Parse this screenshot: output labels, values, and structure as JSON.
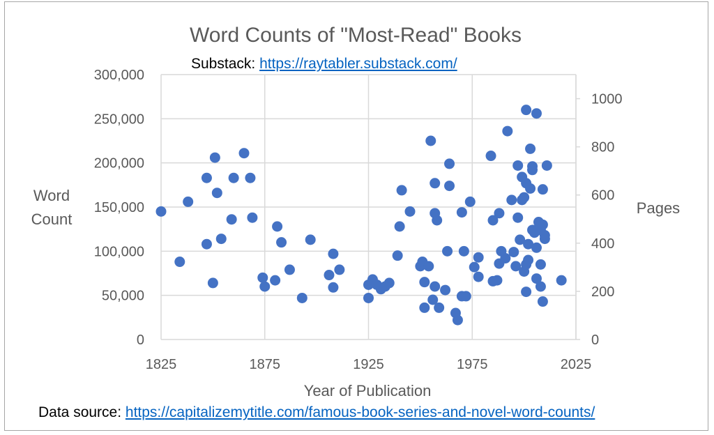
{
  "header": {
    "substack_prefix": "Substack: ",
    "substack_link": "https://raytabler.substack.com/"
  },
  "footer": {
    "source_prefix": "Data source: ",
    "source_link": "https://capitalizemytitle.com/famous-book-series-and-novel-word-counts/"
  },
  "chart_data": {
    "type": "scatter",
    "title": "Word Counts of \"Most-Read\" Books",
    "xlabel": "Year of Publication",
    "ylabel": [
      "Word",
      "Count"
    ],
    "y2label": "Pages",
    "xlim": [
      1825,
      2025
    ],
    "ylim": [
      0,
      300000
    ],
    "y2lim": [
      0,
      1100
    ],
    "x_ticks": [
      1825,
      1875,
      1925,
      1975,
      2025
    ],
    "x_tick_labels": [
      "1825",
      "1875",
      "1925",
      "1975",
      "2025"
    ],
    "y_ticks": [
      0,
      50000,
      100000,
      150000,
      200000,
      250000,
      300000
    ],
    "y_tick_labels": [
      "0",
      "50,000",
      "100,000",
      "150,000",
      "200,000",
      "250,000",
      "300,000"
    ],
    "y2_ticks": [
      0,
      200,
      400,
      600,
      800,
      1000
    ],
    "y2_tick_labels": [
      "0",
      "200",
      "400",
      "600",
      "800",
      "1000"
    ],
    "grid": true,
    "marker_color": "#4472c4",
    "series": [
      {
        "values": [
          [
            1825,
            145000
          ],
          [
            1834,
            88000
          ],
          [
            1838,
            156000
          ],
          [
            1847,
            108000
          ],
          [
            1847,
            183000
          ],
          [
            1850,
            64000
          ],
          [
            1851,
            206000
          ],
          [
            1852,
            166000
          ],
          [
            1854,
            114000
          ],
          [
            1859,
            136000
          ],
          [
            1860,
            183000
          ],
          [
            1865,
            211000
          ],
          [
            1868,
            183000
          ],
          [
            1869,
            138000
          ],
          [
            1874,
            70000
          ],
          [
            1875,
            60000
          ],
          [
            1880,
            67000
          ],
          [
            1881,
            128000
          ],
          [
            1883,
            110000
          ],
          [
            1887,
            79000
          ],
          [
            1893,
            47000
          ],
          [
            1897,
            113000
          ],
          [
            1906,
            73000
          ],
          [
            1908,
            97000
          ],
          [
            1908,
            59000
          ],
          [
            1911,
            79000
          ],
          [
            1925,
            62000
          ],
          [
            1925,
            47000
          ],
          [
            1927,
            68000
          ],
          [
            1929,
            62000
          ],
          [
            1931,
            57000
          ],
          [
            1933,
            60000
          ],
          [
            1935,
            64000
          ],
          [
            1939,
            95000
          ],
          [
            1940,
            128000
          ],
          [
            1941,
            169000
          ],
          [
            1945,
            145000
          ],
          [
            1950,
            83000
          ],
          [
            1951,
            88000
          ],
          [
            1952,
            36000
          ],
          [
            1952,
            65000
          ],
          [
            1954,
            83000
          ],
          [
            1955,
            225000
          ],
          [
            1956,
            45000
          ],
          [
            1957,
            177000
          ],
          [
            1957,
            143000
          ],
          [
            1957,
            60000
          ],
          [
            1958,
            135000
          ],
          [
            1959,
            36000
          ],
          [
            1962,
            56000
          ],
          [
            1963,
            100000
          ],
          [
            1964,
            174000
          ],
          [
            1964,
            199000
          ],
          [
            1967,
            30000
          ],
          [
            1968,
            22000
          ],
          [
            1970,
            49000
          ],
          [
            1970,
            144000
          ],
          [
            1971,
            100000
          ],
          [
            1972,
            49000
          ],
          [
            1974,
            156000
          ],
          [
            1976,
            82000
          ],
          [
            1978,
            93000
          ],
          [
            1978,
            71000
          ],
          [
            1984,
            208000
          ],
          [
            1985,
            66000
          ],
          [
            1985,
            135000
          ],
          [
            1987,
            67000
          ],
          [
            1988,
            143000
          ],
          [
            1988,
            86000
          ],
          [
            1989,
            100000
          ],
          [
            1991,
            92000
          ],
          [
            1992,
            236000
          ],
          [
            1994,
            158000
          ],
          [
            1995,
            99000
          ],
          [
            1996,
            83000
          ],
          [
            1997,
            197000
          ],
          [
            1997,
            138000
          ],
          [
            1998,
            113000
          ],
          [
            1999,
            158000
          ],
          [
            1999,
            184000
          ],
          [
            2000,
            77000
          ],
          [
            2000,
            161000
          ],
          [
            2001,
            260000
          ],
          [
            2001,
            54000
          ],
          [
            2001,
            85000
          ],
          [
            2001,
            177000
          ],
          [
            2002,
            108000
          ],
          [
            2002,
            90000
          ],
          [
            2003,
            216000
          ],
          [
            2003,
            171000
          ],
          [
            2004,
            124000
          ],
          [
            2004,
            192000
          ],
          [
            2004,
            196000
          ],
          [
            2005,
            121000
          ],
          [
            2006,
            104000
          ],
          [
            2006,
            69000
          ],
          [
            2006,
            256000
          ],
          [
            2007,
            133000
          ],
          [
            2008,
            85000
          ],
          [
            2008,
            60000
          ],
          [
            2008,
            124000
          ],
          [
            2009,
            130000
          ],
          [
            2009,
            170000
          ],
          [
            2009,
            43000
          ],
          [
            2010,
            118000
          ],
          [
            2010,
            114000
          ],
          [
            2011,
            197000
          ],
          [
            2018,
            67000
          ]
        ]
      }
    ]
  }
}
